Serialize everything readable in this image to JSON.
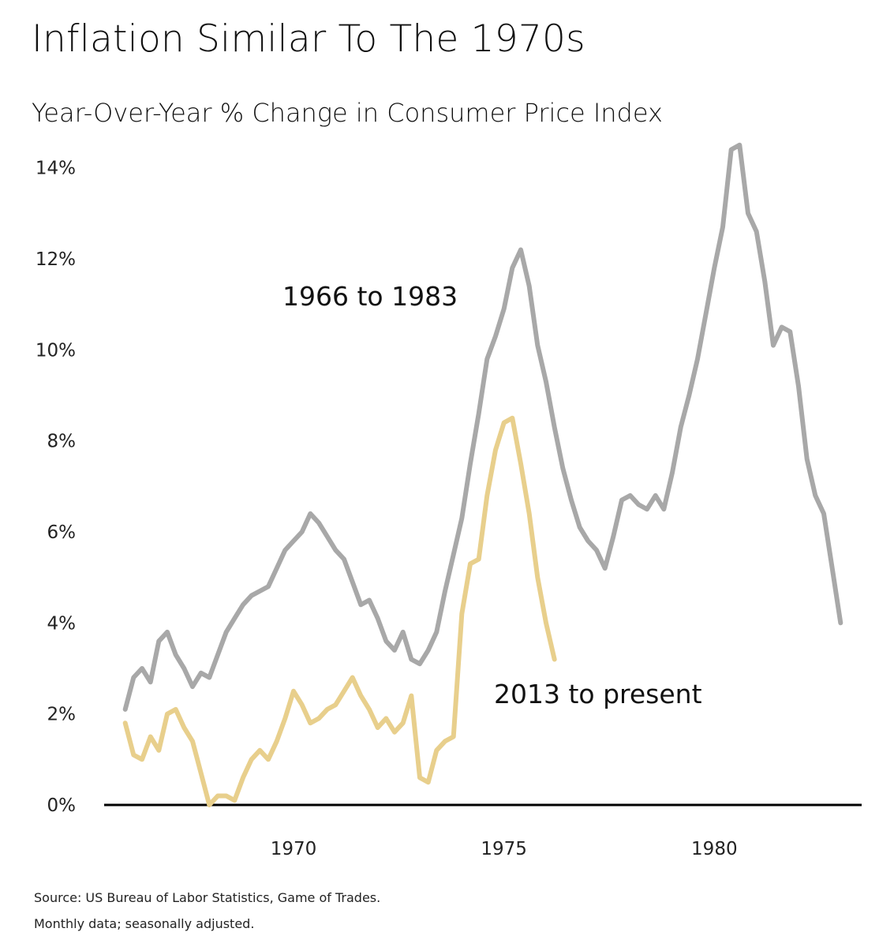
{
  "title": "Inflation Similar To The 1970s",
  "subtitle": "Year-Over-Year % Change in Consumer Price Index",
  "footer": {
    "source": "Source: US Bureau of Labor Statistics, Game of Trades.",
    "note": "Monthly data; seasonally adjusted."
  },
  "chart_data": {
    "type": "line",
    "title": "Inflation Similar To The 1970s",
    "subtitle": "Year-Over-Year % Change in Consumer Price Index",
    "xlabel": "",
    "ylabel": "",
    "xlim": [
      1965.5,
      1983.5
    ],
    "ylim": [
      0,
      15
    ],
    "y_ticks": [
      0,
      2,
      4,
      6,
      8,
      10,
      12,
      14
    ],
    "y_tick_labels": [
      "0%",
      "2%",
      "4%",
      "6%",
      "8%",
      "10%",
      "12%",
      "14%"
    ],
    "x_ticks": [
      1970,
      1975,
      1980
    ],
    "x_tick_labels": [
      "1970",
      "1975",
      "1980"
    ],
    "grid": false,
    "series": [
      {
        "name": "1966 to 1983",
        "color": "#a8a8a8",
        "x": [
          1966.0,
          1966.2,
          1966.4,
          1966.6,
          1966.8,
          1967.0,
          1967.2,
          1967.4,
          1967.6,
          1967.8,
          1968.0,
          1968.2,
          1968.4,
          1968.6,
          1968.8,
          1969.0,
          1969.2,
          1969.4,
          1969.6,
          1969.8,
          1970.0,
          1970.2,
          1970.4,
          1970.6,
          1970.8,
          1971.0,
          1971.2,
          1971.4,
          1971.6,
          1971.8,
          1972.0,
          1972.2,
          1972.4,
          1972.6,
          1972.8,
          1973.0,
          1973.2,
          1973.4,
          1973.6,
          1973.8,
          1974.0,
          1974.2,
          1974.4,
          1974.6,
          1974.8,
          1975.0,
          1975.2,
          1975.4,
          1975.6,
          1975.8,
          1976.0,
          1976.2,
          1976.4,
          1976.6,
          1976.8,
          1977.0,
          1977.2,
          1977.4,
          1977.6,
          1977.8,
          1978.0,
          1978.2,
          1978.4,
          1978.6,
          1978.8,
          1979.0,
          1979.2,
          1979.4,
          1979.6,
          1979.8,
          1980.0,
          1980.2,
          1980.4,
          1980.6,
          1980.8,
          1981.0,
          1981.2,
          1981.4,
          1981.6,
          1981.8,
          1982.0,
          1982.2,
          1982.4,
          1982.6,
          1982.8,
          1983.0
        ],
        "values": [
          2.1,
          2.8,
          3.0,
          2.7,
          3.6,
          3.8,
          3.3,
          3.0,
          2.6,
          2.9,
          2.8,
          3.3,
          3.8,
          4.1,
          4.4,
          4.6,
          4.7,
          4.8,
          5.2,
          5.6,
          5.8,
          6.0,
          6.4,
          6.2,
          5.9,
          5.6,
          5.4,
          4.9,
          4.4,
          4.5,
          4.1,
          3.6,
          3.4,
          3.8,
          3.2,
          3.1,
          3.4,
          3.8,
          4.7,
          5.5,
          6.3,
          7.5,
          8.6,
          9.8,
          10.3,
          10.9,
          11.8,
          12.2,
          11.4,
          10.1,
          9.3,
          8.3,
          7.4,
          6.7,
          6.1,
          5.8,
          5.6,
          5.2,
          5.9,
          6.7,
          6.8,
          6.6,
          6.5,
          6.8,
          6.5,
          7.3,
          8.3,
          9.0,
          9.8,
          10.8,
          11.8,
          12.7,
          14.4,
          14.5,
          13.0,
          12.6,
          11.5,
          10.1,
          10.5,
          10.4,
          9.2,
          7.6,
          6.8,
          6.4,
          5.2,
          4.0
        ]
      },
      {
        "name": "2013 to present",
        "color": "#e8cf8c",
        "x": [
          1966.0,
          1966.2,
          1966.4,
          1966.6,
          1966.8,
          1967.0,
          1967.2,
          1967.4,
          1967.6,
          1967.8,
          1968.0,
          1968.2,
          1968.4,
          1968.6,
          1968.8,
          1969.0,
          1969.2,
          1969.4,
          1969.6,
          1969.8,
          1970.0,
          1970.2,
          1970.4,
          1970.6,
          1970.8,
          1971.0,
          1971.2,
          1971.4,
          1971.6,
          1971.8,
          1972.0,
          1972.2,
          1972.4,
          1972.6,
          1972.8,
          1973.0,
          1973.2,
          1973.4,
          1973.6,
          1973.8,
          1974.0,
          1974.2,
          1974.4,
          1974.6,
          1974.8,
          1975.0,
          1975.2,
          1975.4,
          1975.6,
          1975.8,
          1976.0,
          1976.2
        ],
        "values": [
          1.8,
          1.1,
          1.0,
          1.5,
          1.2,
          2.0,
          2.1,
          1.7,
          1.4,
          0.7,
          0.0,
          0.2,
          0.2,
          0.1,
          0.6,
          1.0,
          1.2,
          1.0,
          1.4,
          1.9,
          2.5,
          2.2,
          1.8,
          1.9,
          2.1,
          2.2,
          2.5,
          2.8,
          2.4,
          2.1,
          1.7,
          1.9,
          1.6,
          1.8,
          2.4,
          0.6,
          0.5,
          1.2,
          1.4,
          1.5,
          4.2,
          5.3,
          5.4,
          6.8,
          7.8,
          8.4,
          8.5,
          7.5,
          6.4,
          5.0,
          4.0,
          3.2
        ]
      }
    ],
    "annotations": [
      {
        "text": "1966 to 1983",
        "series": "1966 to 1983"
      },
      {
        "text": "2013 to present",
        "series": "2013 to present"
      }
    ]
  }
}
